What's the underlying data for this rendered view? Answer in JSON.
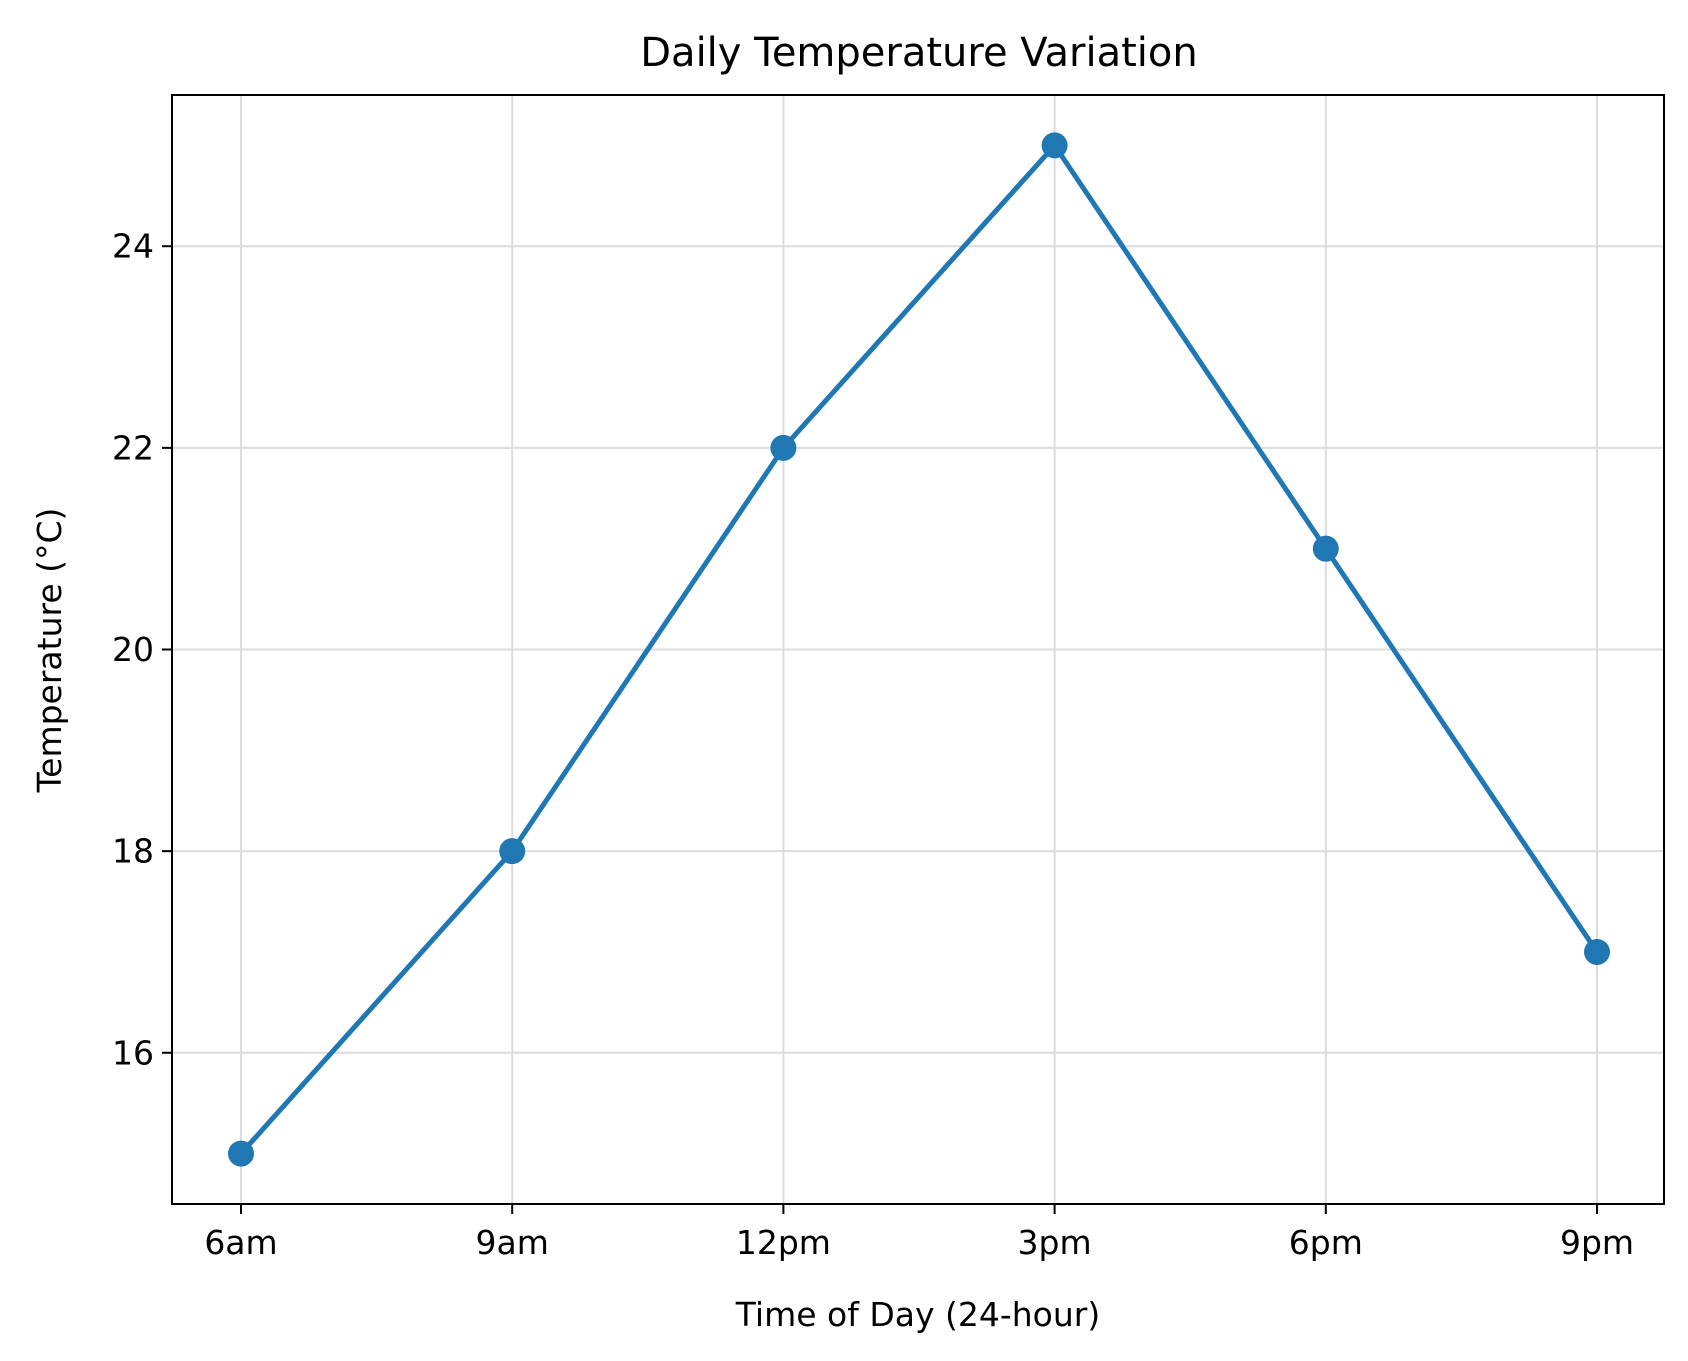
{
  "chart_data": {
    "type": "line",
    "title": "Daily Temperature Variation",
    "xlabel": "Time of Day (24-hour)",
    "ylabel": "Temperature (°C)",
    "categories": [
      "6am",
      "9am",
      "12pm",
      "3pm",
      "6pm",
      "9pm"
    ],
    "series": [
      {
        "values": [
          15,
          18,
          22,
          25,
          21,
          17
        ],
        "color": "#1f77b4",
        "marker": "circle"
      }
    ],
    "yticks": [
      16,
      18,
      20,
      22,
      24
    ],
    "ylim": [
      14.5,
      25.5
    ],
    "grid": true,
    "legend": false
  }
}
